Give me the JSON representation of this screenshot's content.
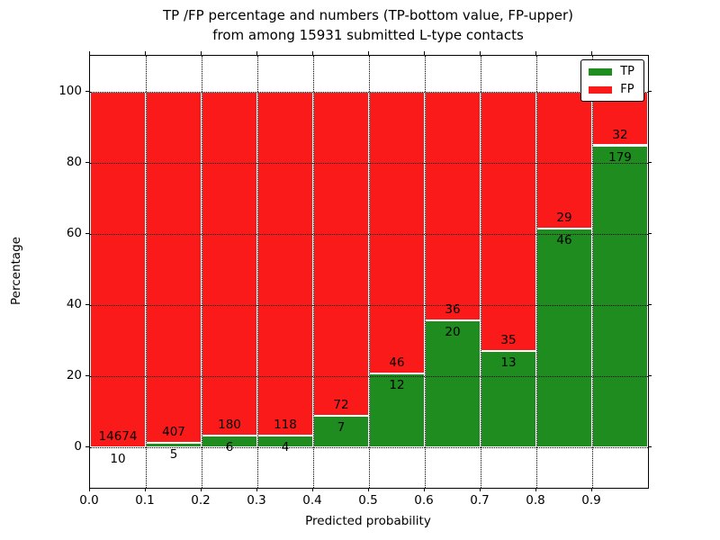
{
  "figure": {
    "title_line1": "TP /FP percentage and numbers (TP-bottom value, FP-upper)",
    "title_line2": "from among 15931 submitted L-type contacts"
  },
  "chart_data": {
    "type": "bar",
    "subtype": "stacked-percentage-100",
    "title": "TP /FP percentage and numbers (TP-bottom value, FP-upper)\nfrom among 15931 submitted L-type contacts",
    "xlabel": "Predicted probability",
    "ylabel": "Percentage",
    "total_contacts": 15931,
    "xlim": [
      0.0,
      1.0
    ],
    "ylim": [
      -11.4,
      110
    ],
    "grid": true,
    "x_tick_values": [
      0.0,
      0.1,
      0.2,
      0.3,
      0.4,
      0.5,
      0.6,
      0.7,
      0.8,
      0.9
    ],
    "x_tick_labels": [
      "0.0",
      "0.1",
      "0.2",
      "0.3",
      "0.4",
      "0.5",
      "0.6",
      "0.7",
      "0.8",
      "0.9"
    ],
    "y_tick_values": [
      0,
      20,
      40,
      60,
      80,
      100
    ],
    "y_tick_labels": [
      "0",
      "20",
      "40",
      "60",
      "80",
      "100"
    ],
    "categories": [
      "0.0-0.1",
      "0.1-0.2",
      "0.2-0.3",
      "0.3-0.4",
      "0.4-0.5",
      "0.5-0.6",
      "0.6-0.7",
      "0.7-0.8",
      "0.8-0.9",
      "0.9-1.0"
    ],
    "series": [
      {
        "name": "TP",
        "counts": [
          10,
          5,
          6,
          4,
          7,
          12,
          20,
          13,
          46,
          179
        ]
      },
      {
        "name": "FP",
        "counts": [
          14674,
          407,
          180,
          118,
          72,
          46,
          36,
          35,
          29,
          32
        ]
      }
    ],
    "tp_percent_of_bin": [
      0.07,
      1.21,
      3.23,
      3.28,
      8.86,
      20.69,
      35.71,
      27.08,
      61.33,
      84.83
    ],
    "legend": {
      "position": "upper-right",
      "entries": [
        {
          "label": "TP",
          "color": "#1e8c1e"
        },
        {
          "label": "FP",
          "color": "#fa1a1a"
        }
      ]
    }
  },
  "colors": {
    "tp": "#1e8c1e",
    "fp": "#fa1a1a",
    "grid": "#000000",
    "text": "#000000",
    "background": "#ffffff",
    "bar_edge": "#ffffff"
  }
}
